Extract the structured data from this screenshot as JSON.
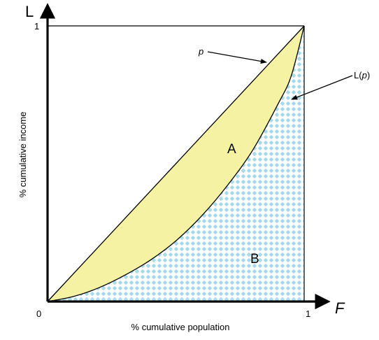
{
  "chart_data": {
    "type": "area",
    "x_axis_letter": "F",
    "y_axis_letter": "L",
    "xlabel": "% cumulative population",
    "ylabel": "% cumulative income",
    "xlim": [
      0,
      1
    ],
    "ylim": [
      0,
      1
    ],
    "x_ticks": [
      "0",
      "1"
    ],
    "y_ticks": [
      "1"
    ],
    "equality_line": {
      "label": "p",
      "x": [
        0,
        1
      ],
      "y": [
        0,
        1
      ]
    },
    "lorenz_curve": {
      "label": "L(p)",
      "label_main": "L",
      "label_arg": "p",
      "x": [
        0,
        0.1,
        0.2,
        0.3,
        0.4,
        0.5,
        0.6,
        0.7,
        0.8,
        0.9,
        0.95,
        1
      ],
      "y": [
        0,
        0.018,
        0.05,
        0.095,
        0.15,
        0.22,
        0.31,
        0.42,
        0.55,
        0.72,
        0.82,
        1
      ]
    },
    "regions": [
      {
        "label": "A",
        "description_fill": "#f5f3a3"
      },
      {
        "label": "B",
        "description_fill": "#a9dbe6"
      }
    ],
    "colors": {
      "region_a": "#f5f3a3",
      "region_b_pattern": "#a9dbe6",
      "line": "#000000"
    }
  }
}
